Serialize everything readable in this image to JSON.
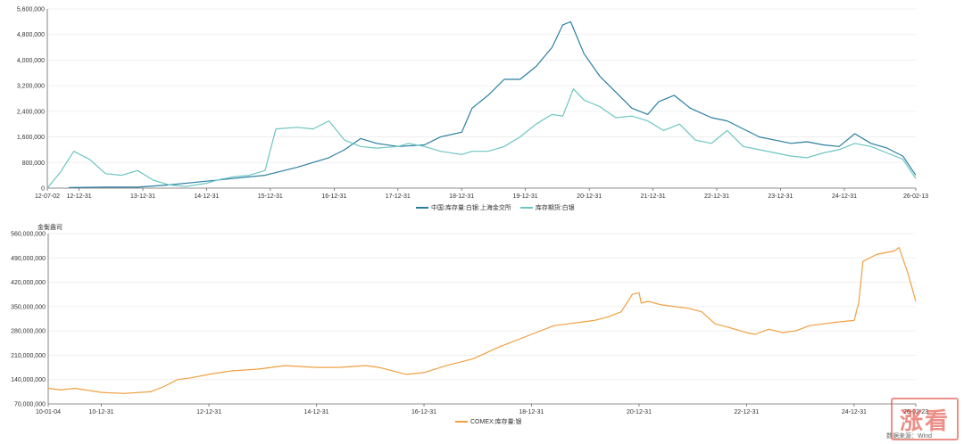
{
  "chart_data": [
    {
      "type": "line",
      "title": "",
      "xlabel": "",
      "ylabel": "",
      "ylim": [
        0,
        5600000
      ],
      "yticks": [
        0,
        800000,
        1600000,
        2400000,
        3200000,
        4000000,
        4800000,
        5600000
      ],
      "yticklabels": [
        "0",
        "800,000",
        "1,600,000",
        "2,400,000",
        "3,200,000",
        "4,000,000",
        "4,800,000",
        "5,600,000"
      ],
      "xticklabels": [
        "12-07-02",
        "12-12-31",
        "13-12-31",
        "14-12-31",
        "15-12-31",
        "16-12-31",
        "17-12-31",
        "18-12-31",
        "19-12-31",
        "20-12-31",
        "21-12-31",
        "22-12-31",
        "23-12-31",
        "24-12-31",
        "26-02-13"
      ],
      "xtickdates": [
        "2012-07-02",
        "2012-12-31",
        "2013-12-31",
        "2014-12-31",
        "2015-12-31",
        "2016-12-31",
        "2017-12-31",
        "2018-12-31",
        "2019-12-31",
        "2020-12-31",
        "2021-12-31",
        "2022-12-31",
        "2023-12-31",
        "2024-12-31",
        "2026-02-13"
      ],
      "xrange": [
        "2012-07-02",
        "2026-02-13"
      ],
      "grid": true,
      "legend": "bottom-center",
      "series": [
        {
          "name": "中国:库存量:白银:上海金交所",
          "color": "#2a7fa0",
          "x": [
            "2012-11-01",
            "2013-06-01",
            "2013-12-01",
            "2014-06-01",
            "2014-12-01",
            "2015-06-01",
            "2015-12-01",
            "2016-06-01",
            "2016-12-01",
            "2017-03-01",
            "2017-06-01",
            "2017-09-01",
            "2017-12-31",
            "2018-06-01",
            "2018-09-01",
            "2019-01-01",
            "2019-03-01",
            "2019-06-01",
            "2019-09-01",
            "2019-12-01",
            "2020-03-01",
            "2020-06-01",
            "2020-08-01",
            "2020-09-15",
            "2020-12-01",
            "2021-03-01",
            "2021-06-01",
            "2021-09-01",
            "2021-12-01",
            "2022-02-01",
            "2022-05-01",
            "2022-08-01",
            "2022-12-01",
            "2023-03-01",
            "2023-06-01",
            "2023-09-01",
            "2023-12-01",
            "2024-03-01",
            "2024-06-01",
            "2024-09-01",
            "2024-12-01",
            "2025-03-01",
            "2025-06-01",
            "2025-09-01",
            "2025-12-01",
            "2026-02-13"
          ],
          "y": [
            20000,
            30000,
            30000,
            100000,
            200000,
            300000,
            400000,
            650000,
            950000,
            1200000,
            1550000,
            1400000,
            1300000,
            1350000,
            1600000,
            1750000,
            2500000,
            2900000,
            3400000,
            3400000,
            3800000,
            4400000,
            5100000,
            5200000,
            4200000,
            3500000,
            3000000,
            2500000,
            2300000,
            2700000,
            2900000,
            2500000,
            2200000,
            2100000,
            1850000,
            1600000,
            1500000,
            1400000,
            1450000,
            1350000,
            1300000,
            1700000,
            1400000,
            1250000,
            1000000,
            400000
          ]
        },
        {
          "name": "库存期货:白银",
          "color": "#6cc5c2",
          "x": [
            "2012-07-02",
            "2012-09-15",
            "2012-12-01",
            "2013-03-01",
            "2013-06-01",
            "2013-09-01",
            "2013-12-01",
            "2014-03-01",
            "2014-06-01",
            "2014-09-01",
            "2014-12-31",
            "2015-03-01",
            "2015-06-01",
            "2015-09-01",
            "2015-12-01",
            "2016-02-01",
            "2016-06-01",
            "2016-09-01",
            "2016-12-01",
            "2017-03-01",
            "2017-06-01",
            "2017-09-01",
            "2017-12-31",
            "2018-03-01",
            "2018-06-01",
            "2018-09-01",
            "2018-12-31",
            "2019-03-01",
            "2019-06-01",
            "2019-09-01",
            "2019-12-01",
            "2020-03-01",
            "2020-06-01",
            "2020-08-01",
            "2020-10-01",
            "2020-12-01",
            "2021-03-01",
            "2021-06-01",
            "2021-09-01",
            "2021-12-01",
            "2022-03-01",
            "2022-06-01",
            "2022-09-01",
            "2022-12-01",
            "2023-03-01",
            "2023-06-01",
            "2023-09-01",
            "2023-12-01",
            "2024-03-01",
            "2024-06-01",
            "2024-09-01",
            "2024-12-01",
            "2025-03-01",
            "2025-06-01",
            "2025-09-01",
            "2025-12-01",
            "2026-02-13"
          ],
          "y": [
            0,
            500000,
            1150000,
            900000,
            450000,
            400000,
            550000,
            250000,
            100000,
            50000,
            150000,
            250000,
            350000,
            400000,
            550000,
            1850000,
            1900000,
            1850000,
            2100000,
            1500000,
            1300000,
            1250000,
            1300000,
            1400000,
            1300000,
            1150000,
            1050000,
            1150000,
            1150000,
            1300000,
            1600000,
            2000000,
            2300000,
            2250000,
            3100000,
            2750000,
            2550000,
            2200000,
            2250000,
            2100000,
            1800000,
            2000000,
            1500000,
            1400000,
            1800000,
            1300000,
            1200000,
            1100000,
            1000000,
            950000,
            1100000,
            1200000,
            1400000,
            1300000,
            1100000,
            900000,
            300000
          ]
        }
      ]
    },
    {
      "type": "line",
      "title": "",
      "xlabel": "",
      "ylabel": "金衡盎司",
      "ylim": [
        70000000,
        560000000
      ],
      "yticks": [
        70000000,
        140000000,
        210000000,
        280000000,
        350000000,
        420000000,
        490000000,
        560000000
      ],
      "yticklabels": [
        "70,000,000",
        "140,000,000",
        "210,000,000",
        "280,000,000",
        "350,000,000",
        "420,000,000",
        "490,000,000",
        "560,000,000"
      ],
      "xticklabels": [
        "10-01-04",
        "10-12-31",
        "12-12-31",
        "14-12-31",
        "16-12-31",
        "18-12-31",
        "20-12-31",
        "22-12-31",
        "24-12-31",
        "26-02-23"
      ],
      "xtickdates": [
        "2010-01-04",
        "2010-12-31",
        "2012-12-31",
        "2014-12-31",
        "2016-12-31",
        "2018-12-31",
        "2020-12-31",
        "2022-12-31",
        "2024-12-31",
        "2026-02-23"
      ],
      "xrange": [
        "2010-01-04",
        "2026-02-23"
      ],
      "grid": true,
      "legend": "bottom-center",
      "series": [
        {
          "name": "COMEX:库存量:银",
          "color": "#f0a040",
          "x": [
            "2010-01-04",
            "2010-04-01",
            "2010-07-01",
            "2010-12-31",
            "2011-06-01",
            "2011-12-01",
            "2012-03-01",
            "2012-06-01",
            "2012-09-01",
            "2012-12-31",
            "2013-06-01",
            "2013-12-01",
            "2014-06-01",
            "2014-12-31",
            "2015-06-01",
            "2015-12-01",
            "2016-03-01",
            "2016-09-01",
            "2016-12-31",
            "2017-06-01",
            "2017-12-01",
            "2018-06-01",
            "2018-12-31",
            "2019-06-01",
            "2019-12-01",
            "2020-03-01",
            "2020-06-01",
            "2020-09-01",
            "2020-11-15",
            "2020-12-31",
            "2021-01-15",
            "2021-03-01",
            "2021-06-01",
            "2021-09-01",
            "2021-12-01",
            "2022-03-01",
            "2022-06-01",
            "2022-09-01",
            "2022-12-31",
            "2023-03-01",
            "2023-06-01",
            "2023-09-01",
            "2023-12-01",
            "2024-03-01",
            "2024-06-01",
            "2024-09-01",
            "2024-12-31",
            "2025-01-31",
            "2025-03-01",
            "2025-06-01",
            "2025-08-01",
            "2025-10-01",
            "2025-11-01",
            "2026-01-01",
            "2026-02-23"
          ],
          "y": [
            115000000,
            110000000,
            115000000,
            103000000,
            100000000,
            105000000,
            120000000,
            140000000,
            145000000,
            155000000,
            165000000,
            170000000,
            180000000,
            175000000,
            175000000,
            180000000,
            175000000,
            155000000,
            160000000,
            180000000,
            200000000,
            235000000,
            270000000,
            295000000,
            305000000,
            310000000,
            320000000,
            335000000,
            385000000,
            390000000,
            360000000,
            365000000,
            355000000,
            350000000,
            345000000,
            335000000,
            300000000,
            290000000,
            275000000,
            270000000,
            285000000,
            275000000,
            280000000,
            295000000,
            300000000,
            305000000,
            310000000,
            360000000,
            480000000,
            500000000,
            505000000,
            510000000,
            520000000,
            445000000,
            365000000
          ]
        }
      ]
    }
  ],
  "source_note": "数据来源：Wind",
  "watermark_text": "涨看"
}
